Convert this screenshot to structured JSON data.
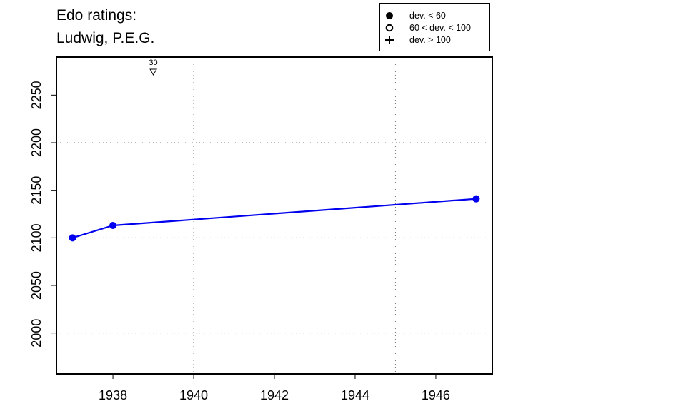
{
  "chart_data": {
    "type": "line",
    "title": "Edo ratings:",
    "subtitle": "Ludwig, P.E.G.",
    "xlabel": "",
    "ylabel": "",
    "xlim": [
      1936.6,
      1947.4
    ],
    "ylim": [
      1957,
      2290
    ],
    "x_ticks": [
      1938,
      1940,
      1942,
      1944,
      1946
    ],
    "y_ticks": [
      2000,
      2050,
      2100,
      2150,
      2200,
      2250
    ],
    "x_gridlines": [
      1940,
      1945
    ],
    "y_gridlines": [
      2000,
      2100,
      2200
    ],
    "grid": true,
    "series": [
      {
        "x": [
          1937,
          1938,
          1947
        ],
        "values": [
          2100,
          2113,
          2141
        ],
        "marker": "filled-circle",
        "color": "#0000ee"
      }
    ],
    "annotations": [
      {
        "x": 1939,
        "text": "30",
        "symbol": "down-triangle"
      }
    ],
    "legend": {
      "position": "top-right",
      "entries": [
        {
          "symbol": "filled-circle",
          "label": "dev. < 60"
        },
        {
          "symbol": "open-circle",
          "label": "60 < dev. < 100"
        },
        {
          "symbol": "plus",
          "label": "dev. > 100"
        }
      ]
    }
  }
}
